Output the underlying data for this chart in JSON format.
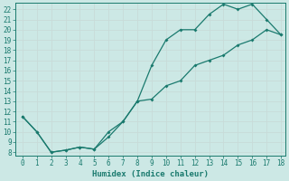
{
  "xlabel": "Humidex (Indice chaleur)",
  "x_line1": [
    0,
    1,
    2,
    3,
    4,
    5,
    6,
    7,
    8,
    9,
    10,
    11,
    12,
    13,
    14,
    15,
    16,
    17,
    18
  ],
  "y_line1": [
    11.5,
    10,
    8,
    8.2,
    8.5,
    8.3,
    10,
    11,
    13,
    16.5,
    19,
    20,
    20,
    21.5,
    22.5,
    22,
    22.5,
    21,
    19.5
  ],
  "x_line2": [
    0,
    1,
    2,
    3,
    4,
    5,
    6,
    7,
    8,
    9,
    10,
    11,
    12,
    13,
    14,
    15,
    16,
    17,
    18
  ],
  "y_line2": [
    11.5,
    10,
    8,
    8.2,
    8.5,
    8.3,
    9.5,
    11,
    13,
    13.2,
    14.5,
    15,
    16.5,
    17,
    17.5,
    18.5,
    19,
    20,
    19.5
  ],
  "line_color": "#1a7a6e",
  "bg_color": "#cce8e5",
  "grid_color": "#b0d8d4",
  "ylim_min": 8,
  "ylim_max": 22.5,
  "xlim_min": 0,
  "xlim_max": 18,
  "yticks": [
    8,
    9,
    10,
    11,
    12,
    13,
    14,
    15,
    16,
    17,
    18,
    19,
    20,
    21,
    22
  ],
  "xticks": [
    0,
    1,
    2,
    3,
    4,
    5,
    6,
    7,
    8,
    9,
    10,
    11,
    12,
    13,
    14,
    15,
    16,
    17,
    18
  ],
  "tick_fontsize": 5.5,
  "xlabel_fontsize": 6.5
}
